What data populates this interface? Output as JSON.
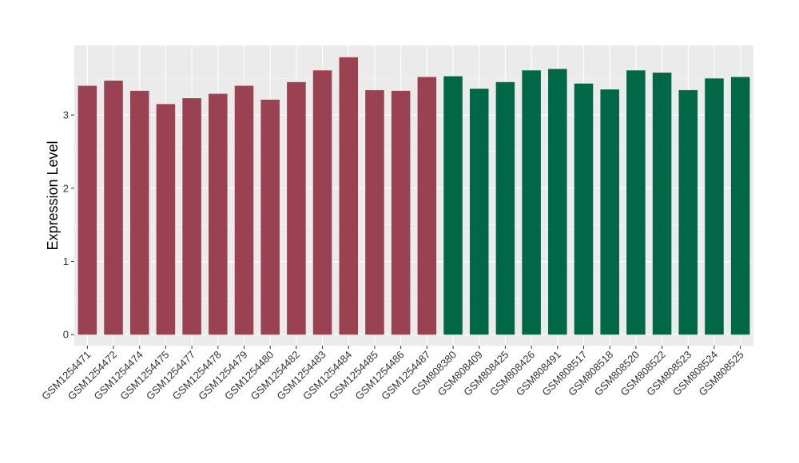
{
  "chart_data": {
    "type": "bar",
    "ylabel": "Expression Level",
    "xlabel": "",
    "ylim": [
      -0.15,
      3.95
    ],
    "yticks": [
      0,
      1,
      2,
      3
    ],
    "grid": true,
    "background": "#ebebeb",
    "categories": [
      "GSM1254471",
      "GSM1254472",
      "GSM1254474",
      "GSM1254475",
      "GSM1254477",
      "GSM1254478",
      "GSM1254479",
      "GSM1254480",
      "GSM1254482",
      "GSM1254483",
      "GSM1254484",
      "GSM1254485",
      "GSM1254486",
      "GSM1254487",
      "GSM808380",
      "GSM808409",
      "GSM808425",
      "GSM808426",
      "GSM808491",
      "GSM808517",
      "GSM808518",
      "GSM808520",
      "GSM808522",
      "GSM808523",
      "GSM808524",
      "GSM808525"
    ],
    "values": [
      3.4,
      3.47,
      3.33,
      3.15,
      3.23,
      3.29,
      3.4,
      3.21,
      3.45,
      3.61,
      3.79,
      3.34,
      3.33,
      3.52,
      3.53,
      3.36,
      3.45,
      3.61,
      3.63,
      3.43,
      3.35,
      3.61,
      3.58,
      3.34,
      3.5,
      3.52
    ],
    "group_colors": [
      "#9b4252",
      "#006846"
    ],
    "groups": [
      0,
      0,
      0,
      0,
      0,
      0,
      0,
      0,
      0,
      0,
      0,
      0,
      0,
      0,
      1,
      1,
      1,
      1,
      1,
      1,
      1,
      1,
      1,
      1,
      1,
      1
    ]
  }
}
